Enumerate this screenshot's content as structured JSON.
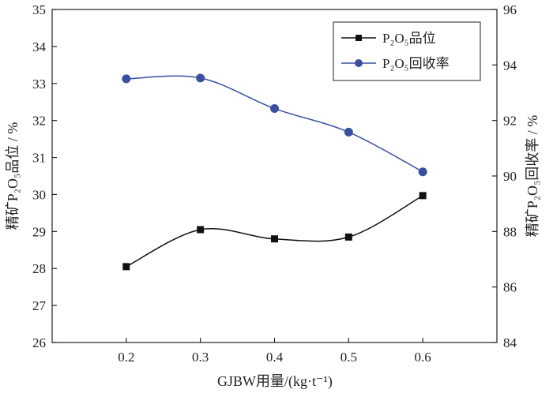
{
  "chart_data": {
    "type": "line",
    "x_label": "GJBW用量/(kg·t⁻¹)",
    "y_left_label": "精矿P₂O₅品位 / %",
    "y_right_label": "精矿P₂O₅回收率 / %",
    "x": [
      0.2,
      0.3,
      0.4,
      0.5,
      0.6
    ],
    "x_tick_labels": [
      "0.2",
      "0.3",
      "0.4",
      "0.5",
      "0.6"
    ],
    "xlim": [
      0.1,
      0.7
    ],
    "ylim_left": [
      26,
      35
    ],
    "y_left_ticks": [
      26,
      27,
      28,
      29,
      30,
      31,
      32,
      33,
      34,
      35
    ],
    "ylim_right": [
      84,
      96
    ],
    "y_right_ticks": [
      84,
      86,
      88,
      90,
      92,
      94,
      96
    ],
    "series": [
      {
        "name": "P₂O₅品位",
        "axis": "left",
        "marker": "square",
        "color": "#111111",
        "values": [
          28.05,
          29.05,
          28.8,
          28.85,
          29.97
        ]
      },
      {
        "name": "P₂O₅回收率",
        "axis": "right",
        "marker": "circle",
        "color": "#3a4fa0",
        "values": [
          93.5,
          93.53,
          92.43,
          91.58,
          90.15
        ]
      }
    ],
    "legend": {
      "position": "top-right",
      "entries": [
        "P₂O₅品位",
        "P₂O₅回收率"
      ]
    }
  }
}
